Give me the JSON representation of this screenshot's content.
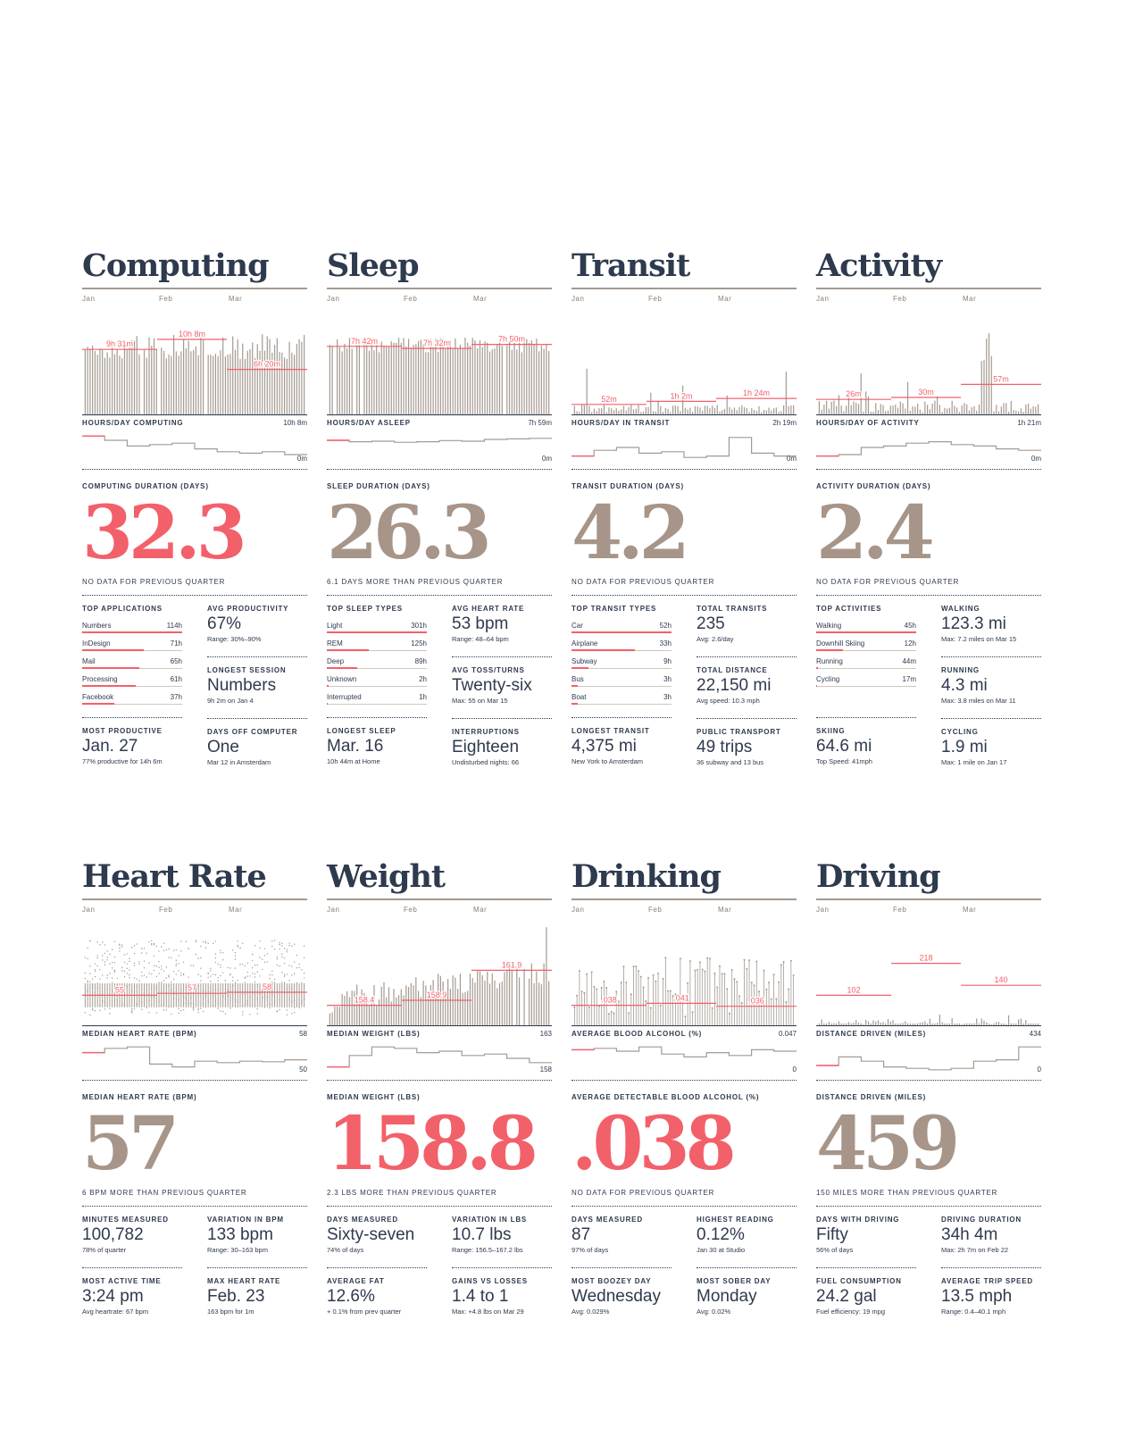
{
  "months": [
    "Jan",
    "Feb",
    "Mar"
  ],
  "colors": {
    "accent": "#f2606a",
    "bars": "#a59a91",
    "ink": "#2e3a4e"
  },
  "panels": [
    {
      "title": "Computing",
      "style": "bars",
      "seed": 11,
      "base": 0.55,
      "spikes": 0.25,
      "avg_labels": [
        "9h 31m",
        "10h 8m",
        "6h 20m"
      ],
      "avg_levels": [
        0.65,
        0.75,
        0.45
      ],
      "summary_label": "HOURS/DAY COMPUTING",
      "summary_max": "10h 8m",
      "summary_min": "0m",
      "summary_profile": [
        0.9,
        0.75,
        0.55,
        0.6,
        0.65,
        0.45,
        0.35,
        0.3,
        0.35,
        0.25
      ],
      "duration_label": "COMPUTING DURATION (DAYS)",
      "big_value": "32.3",
      "big_color": "red",
      "comparison": "NO DATA FOR PREVIOUS QUARTER",
      "list": {
        "label": "TOP APPLICATIONS",
        "items": [
          {
            "name": "Numbers",
            "value": "114h",
            "frac": 1.0
          },
          {
            "name": "InDesign",
            "value": "71h",
            "frac": 0.62
          },
          {
            "name": "Mail",
            "value": "65h",
            "frac": 0.57
          },
          {
            "name": "Processing",
            "value": "61h",
            "frac": 0.54
          },
          {
            "name": "Facebook",
            "value": "37h",
            "frac": 0.32
          }
        ]
      },
      "right_stats": [
        {
          "label": "AVG PRODUCTIVITY",
          "value": "67%",
          "sub": "Range: 30%–90%"
        },
        {
          "label": "LONGEST SESSION",
          "value": "Numbers",
          "sub": "9h 2m on Jan 4"
        }
      ],
      "bottom_stats": [
        {
          "label": "MOST PRODUCTIVE",
          "value": "Jan. 27",
          "sub": "77% productive for 14h 6m"
        },
        {
          "label": "DAYS OFF COMPUTER",
          "value": "One",
          "sub": "Mar 12 in Amsterdam"
        }
      ]
    },
    {
      "title": "Sleep",
      "style": "bars",
      "seed": 23,
      "base": 0.62,
      "spikes": 0.15,
      "avg_labels": [
        "7h 42m",
        "7h 32m",
        "7h 50m"
      ],
      "avg_levels": [
        0.68,
        0.66,
        0.7
      ],
      "summary_label": "HOURS/DAY ASLEEP",
      "summary_max": "7h 59m",
      "summary_min": "0m",
      "summary_profile": [
        0.75,
        0.7,
        0.72,
        0.68,
        0.7,
        0.74,
        0.72,
        0.78,
        0.8,
        0.82
      ],
      "duration_label": "SLEEP DURATION (DAYS)",
      "big_value": "26.3",
      "big_color": "brown",
      "comparison": "6.1 DAYS MORE THAN PREVIOUS QUARTER",
      "list": {
        "label": "TOP SLEEP TYPES",
        "items": [
          {
            "name": "Light",
            "value": "301h",
            "frac": 1.0
          },
          {
            "name": "REM",
            "value": "125h",
            "frac": 0.42
          },
          {
            "name": "Deep",
            "value": "89h",
            "frac": 0.3
          },
          {
            "name": "Unknown",
            "value": "2h",
            "frac": 0.02
          },
          {
            "name": "Interrupted",
            "value": "1h",
            "frac": 0.01
          }
        ]
      },
      "right_stats": [
        {
          "label": "AVG HEART RATE",
          "value": "53 bpm",
          "sub": "Range: 48–64 bpm"
        },
        {
          "label": "AVG TOSS/TURNS",
          "value": "Twenty-six",
          "sub": "Max: 55 on Mar 15"
        }
      ],
      "bottom_stats": [
        {
          "label": "LONGEST SLEEP",
          "value": "Mar. 16",
          "sub": "10h 44m at Home"
        },
        {
          "label": "INTERRUPTIONS",
          "value": "Eighteen",
          "sub": "Undisturbed nights: 66"
        }
      ]
    },
    {
      "title": "Transit",
      "style": "sparse",
      "seed": 37,
      "base": 0.08,
      "spikes": 0.5,
      "avg_labels": [
        "52m",
        "1h 2m",
        "1h 24m"
      ],
      "avg_levels": [
        0.1,
        0.13,
        0.16
      ],
      "summary_label": "HOURS/DAY IN TRANSIT",
      "summary_max": "2h 19m",
      "summary_min": "0m",
      "summary_profile": [
        0.2,
        0.4,
        0.5,
        0.3,
        0.35,
        0.15,
        0.2,
        0.85,
        0.3,
        0.2
      ],
      "duration_label": "TRANSIT DURATION (DAYS)",
      "big_value": "4.2",
      "big_color": "brown",
      "comparison": "NO DATA FOR PREVIOUS QUARTER",
      "list": {
        "label": "TOP TRANSIT TYPES",
        "items": [
          {
            "name": "Car",
            "value": "52h",
            "frac": 1.0
          },
          {
            "name": "Airplane",
            "value": "33h",
            "frac": 0.63
          },
          {
            "name": "Subway",
            "value": "9h",
            "frac": 0.17
          },
          {
            "name": "Bus",
            "value": "3h",
            "frac": 0.06
          },
          {
            "name": "Boat",
            "value": "3h",
            "frac": 0.06
          }
        ]
      },
      "right_stats": [
        {
          "label": "TOTAL TRANSITS",
          "value": "235",
          "sub": "Avg: 2.6/day"
        },
        {
          "label": "TOTAL DISTANCE",
          "value": "22,150 mi",
          "sub": "Avg speed: 10.3 mph"
        }
      ],
      "bottom_stats": [
        {
          "label": "LONGEST TRANSIT",
          "value": "4,375 mi",
          "sub": "New York to Amsterdam"
        },
        {
          "label": "PUBLIC TRANSPORT",
          "value": "49 trips",
          "sub": "36 subway and 13 bus"
        }
      ]
    },
    {
      "title": "Activity",
      "style": "sparse",
      "seed": 41,
      "base": 0.12,
      "spikes": 0.3,
      "avg_labels": [
        "26m",
        "30m",
        "57m"
      ],
      "avg_levels": [
        0.15,
        0.17,
        0.3
      ],
      "summary_label": "HOURS/DAY OF ACTIVITY",
      "summary_max": "1h 21m",
      "summary_min": "0m",
      "summary_profile": [
        0.2,
        0.25,
        0.5,
        0.55,
        0.65,
        0.7,
        0.6,
        0.55,
        0.45,
        0.4
      ],
      "duration_label": "ACTIVITY DURATION (DAYS)",
      "big_value": "2.4",
      "big_color": "brown",
      "comparison": "NO DATA FOR PREVIOUS QUARTER",
      "list": {
        "label": "TOP ACTIVITIES",
        "items": [
          {
            "name": "Walking",
            "value": "45h",
            "frac": 1.0
          },
          {
            "name": "Downhill Skiing",
            "value": "12h",
            "frac": 0.27
          },
          {
            "name": "Running",
            "value": "44m",
            "frac": 0.02
          },
          {
            "name": "Cycling",
            "value": "17m",
            "frac": 0.01
          }
        ]
      },
      "right_stats": [
        {
          "label": "WALKING",
          "value": "123.3 mi",
          "sub": "Max: 7.2 miles on Mar 15"
        },
        {
          "label": "RUNNING",
          "value": "4.3 mi",
          "sub": "Max: 3.8 miles on Mar 11"
        }
      ],
      "bottom_stats": [
        {
          "label": "SKIING",
          "value": "64.6 mi",
          "sub": "Top Speed: 41mph"
        },
        {
          "label": "CYCLING",
          "value": "1.9 mi",
          "sub": "Max: 1 mile on Jan 17"
        }
      ]
    },
    {
      "title": "Heart Rate",
      "style": "dots",
      "seed": 53,
      "base": 0.3,
      "spikes": 0.4,
      "avg_labels": [
        "55",
        "57",
        "58"
      ],
      "avg_levels": [
        0.3,
        0.32,
        0.33
      ],
      "summary_label": "MEDIAN HEART RATE (BPM)",
      "summary_max": "58",
      "summary_min": "50",
      "summary_profile": [
        0.7,
        0.85,
        0.9,
        0.3,
        0.2,
        0.4,
        0.35,
        0.4,
        0.38,
        0.45
      ],
      "duration_label": "MEDIAN HEART RATE (BPM)",
      "big_value": "57",
      "big_color": "brown",
      "comparison": "6 BPM MORE THAN PREVIOUS QUARTER",
      "right_stats_left": [
        {
          "label": "MINUTES MEASURED",
          "value": "100,782",
          "sub": "78% of quarter"
        },
        {
          "label": "MOST ACTIVE TIME",
          "value": "3:24 pm",
          "sub": "Avg heartrate: 67 bpm"
        }
      ],
      "right_stats": [
        {
          "label": "VARIATION IN BPM",
          "value": "133 bpm",
          "sub": "Range: 30–163 bpm"
        },
        {
          "label": "MAX HEART RATE",
          "value": "Feb. 23",
          "sub": "163 bpm for 1m"
        }
      ]
    },
    {
      "title": "Weight",
      "style": "weight",
      "seed": 61,
      "base": 0.2,
      "spikes": 0.3,
      "avg_labels": [
        "158.4",
        "158.9",
        "161.9"
      ],
      "avg_levels": [
        0.2,
        0.25,
        0.55
      ],
      "summary_label": "MEDIAN WEIGHT (LBS)",
      "summary_max": "163",
      "summary_min": "158",
      "summary_profile": [
        0.2,
        0.6,
        0.9,
        0.85,
        0.7,
        0.75,
        0.6,
        0.65,
        0.5,
        0.35
      ],
      "duration_label": "MEDIAN WEIGHT (LBS)",
      "big_value": "158.8",
      "big_color": "red",
      "comparison": "2.3 LBS MORE THAN PREVIOUS QUARTER",
      "right_stats_left": [
        {
          "label": "DAYS MEASURED",
          "value": "Sixty-seven",
          "sub": "74% of days"
        },
        {
          "label": "AVERAGE FAT",
          "value": "12.6%",
          "sub": "+ 0.1% from prev quarter"
        }
      ],
      "right_stats": [
        {
          "label": "VARIATION IN LBS",
          "value": "10.7 lbs",
          "sub": "Range: 156.5–167.2 lbs"
        },
        {
          "label": "GAINS VS LOSSES",
          "value": "1.4 to 1",
          "sub": "Max: +4.8 lbs on Mar 29"
        }
      ]
    },
    {
      "title": "Drinking",
      "style": "lollipop",
      "seed": 71,
      "base": 0.2,
      "spikes": 0.4,
      "avg_labels": [
        ".038",
        ".041",
        ".036"
      ],
      "avg_levels": [
        0.2,
        0.22,
        0.19
      ],
      "summary_label": "AVERAGE BLOOD ALCOHOL (%)",
      "summary_max": "0.047",
      "summary_min": "0",
      "summary_profile": [
        0.8,
        0.85,
        0.75,
        0.9,
        0.65,
        0.55,
        0.7,
        0.6,
        0.8,
        0.75
      ],
      "duration_label": "AVERAGE DETECTABLE BLOOD ALCOHOL (%)",
      "big_value": ".038",
      "big_color": "red",
      "comparison": "NO DATA FOR PREVIOUS QUARTER",
      "right_stats_left": [
        {
          "label": "DAYS MEASURED",
          "value": "87",
          "sub": "97% of days"
        },
        {
          "label": "MOST BOOZEY DAY",
          "value": "Wednesday",
          "sub": "Avg: 0.029%"
        }
      ],
      "right_stats": [
        {
          "label": "HIGHEST READING",
          "value": "0.12%",
          "sub": "Jan 30 at Studio"
        },
        {
          "label": "MOST SOBER DAY",
          "value": "Monday",
          "sub": "Avg: 0.02%"
        }
      ]
    },
    {
      "title": "Driving",
      "style": "driving",
      "seed": 83,
      "base": 0.03,
      "spikes": 0.15,
      "avg_labels": [
        "102",
        "218",
        "140"
      ],
      "avg_levels": [
        0.3,
        0.62,
        0.4
      ],
      "summary_label": "DISTANCE DRIVEN (MILES)",
      "summary_max": "434",
      "summary_min": "0",
      "summary_profile": [
        0.25,
        0.55,
        0.4,
        0.2,
        0.15,
        0.1,
        0.15,
        0.4,
        0.45,
        0.9
      ],
      "duration_label": "DISTANCE DRIVEN (MILES)",
      "big_value": "459",
      "big_color": "brown",
      "comparison": "150 MILES MORE THAN PREVIOUS QUARTER",
      "right_stats_left": [
        {
          "label": "DAYS WITH DRIVING",
          "value": "Fifty",
          "sub": "56% of days"
        },
        {
          "label": "FUEL CONSUMPTION",
          "value": "24.2 gal",
          "sub": "Fuel efficiency: 19 mpg"
        }
      ],
      "right_stats": [
        {
          "label": "DRIVING DURATION",
          "value": "34h 4m",
          "sub": "Max: 2h 7m on Feb 22"
        },
        {
          "label": "AVERAGE TRIP SPEED",
          "value": "13.5 mph",
          "sub": "Range: 0.4–40.1 mph"
        }
      ]
    }
  ]
}
